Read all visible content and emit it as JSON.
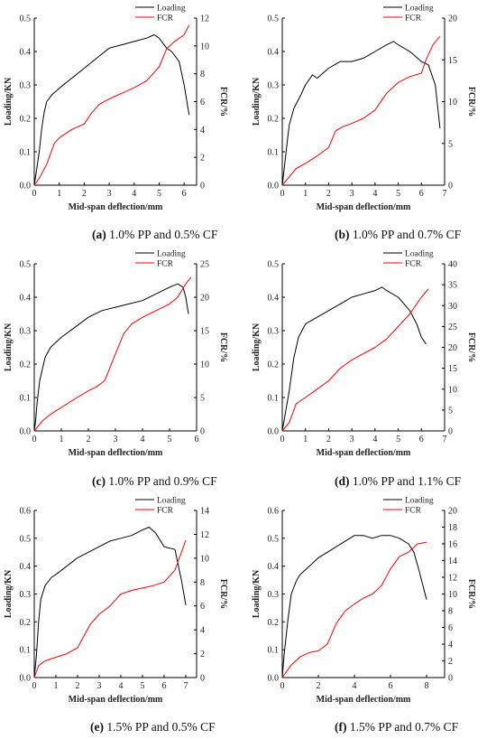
{
  "colors": {
    "loading": "#000000",
    "fcr": "#ff0000"
  },
  "chart_data": [
    {
      "type": "line",
      "panel_letter": "(a)",
      "caption": "1.0% PP and 0.5% CF",
      "xlabel": "Mid-span deflection/mm",
      "ylabel": "Loading/KN",
      "y2label": "FCR/%",
      "xlim": [
        0,
        6.5
      ],
      "ylim": [
        0,
        0.5
      ],
      "y2lim": [
        0,
        12
      ],
      "xticks": [
        "0",
        "1",
        "2",
        "3",
        "4",
        "5",
        "6"
      ],
      "yticks": [
        "0.0",
        "0.1",
        "0.2",
        "0.3",
        "0.4",
        "0.5"
      ],
      "y2ticks": [
        "0",
        "2",
        "4",
        "6",
        "8",
        "10",
        "12"
      ],
      "legend": [
        "Loading",
        "FCR"
      ],
      "legend_position": "top-right",
      "series": [
        {
          "name": "Loading",
          "axis": "left",
          "x": [
            0,
            0.1,
            0.2,
            0.3,
            0.4,
            0.5,
            0.7,
            1.0,
            1.5,
            2.0,
            2.5,
            3.0,
            3.5,
            4.0,
            4.5,
            4.8,
            5.0,
            5.3,
            5.5,
            5.8,
            6.0,
            6.2
          ],
          "y": [
            0,
            0.05,
            0.1,
            0.17,
            0.22,
            0.25,
            0.27,
            0.29,
            0.32,
            0.35,
            0.38,
            0.41,
            0.42,
            0.43,
            0.44,
            0.45,
            0.44,
            0.41,
            0.4,
            0.37,
            0.3,
            0.21
          ]
        },
        {
          "name": "FCR",
          "axis": "right",
          "x": [
            0,
            0.2,
            0.5,
            0.8,
            1.0,
            1.5,
            2.0,
            2.3,
            2.6,
            3.0,
            3.5,
            4.0,
            4.5,
            5.0,
            5.3,
            5.6,
            6.0,
            6.2
          ],
          "y": [
            0,
            0.5,
            1.5,
            3.0,
            3.4,
            4.0,
            4.4,
            5.2,
            5.8,
            6.2,
            6.6,
            7.0,
            7.5,
            8.5,
            9.8,
            10.3,
            10.8,
            11.5
          ]
        }
      ]
    },
    {
      "type": "line",
      "panel_letter": "(b)",
      "caption": "1.0% PP and 0.7% CF",
      "xlabel": "Mid-span deflection/mm",
      "ylabel": "Loading/KN",
      "y2label": "FCR/%",
      "xlim": [
        0,
        7
      ],
      "ylim": [
        0,
        0.5
      ],
      "y2lim": [
        0,
        20
      ],
      "xticks": [
        "0",
        "1",
        "2",
        "3",
        "4",
        "5",
        "6",
        "7"
      ],
      "yticks": [
        "0.0",
        "0.1",
        "0.2",
        "0.3",
        "0.4",
        "0.5"
      ],
      "y2ticks": [
        "0",
        "5",
        "10",
        "15",
        "20"
      ],
      "legend": [
        "Loading",
        "FCR"
      ],
      "legend_position": "top-right",
      "series": [
        {
          "name": "Loading",
          "axis": "left",
          "x": [
            0,
            0.1,
            0.2,
            0.3,
            0.5,
            0.8,
            1.0,
            1.3,
            1.5,
            2.0,
            2.5,
            3.0,
            3.5,
            4.0,
            4.5,
            4.8,
            5.0,
            5.5,
            6.0,
            6.3,
            6.6,
            6.8
          ],
          "y": [
            0,
            0.06,
            0.12,
            0.18,
            0.23,
            0.27,
            0.3,
            0.33,
            0.32,
            0.35,
            0.37,
            0.37,
            0.38,
            0.4,
            0.42,
            0.43,
            0.42,
            0.4,
            0.37,
            0.36,
            0.3,
            0.17
          ]
        },
        {
          "name": "FCR",
          "axis": "right",
          "x": [
            0,
            0.3,
            0.6,
            1.0,
            1.5,
            2.0,
            2.3,
            2.6,
            3.0,
            3.5,
            4.0,
            4.5,
            5.0,
            5.5,
            6.0,
            6.2,
            6.5,
            6.8
          ],
          "y": [
            0,
            1.0,
            2.0,
            2.6,
            3.5,
            4.5,
            6.5,
            7.0,
            7.4,
            8.0,
            9.0,
            11.0,
            12.3,
            13.0,
            13.4,
            15.0,
            16.8,
            17.8
          ]
        }
      ]
    },
    {
      "type": "line",
      "panel_letter": "(c)",
      "caption": "1.0% PP and 0.9% CF",
      "xlabel": "Mid-span deflection/mm",
      "ylabel": "Loading/KN",
      "y2label": "FCR/%",
      "xlim": [
        0,
        6
      ],
      "ylim": [
        0,
        0.5
      ],
      "y2lim": [
        0,
        25
      ],
      "xticks": [
        "0",
        "1",
        "2",
        "3",
        "4",
        "5",
        "6"
      ],
      "yticks": [
        "0.0",
        "0.1",
        "0.2",
        "0.3",
        "0.4",
        "0.5"
      ],
      "y2ticks": [
        "0",
        "5",
        "10",
        "15",
        "20",
        "25"
      ],
      "legend": [
        "Loading",
        "FCR"
      ],
      "legend_position": "top-right",
      "series": [
        {
          "name": "Loading",
          "axis": "left",
          "x": [
            0,
            0.05,
            0.1,
            0.2,
            0.4,
            0.6,
            1.0,
            1.5,
            2.0,
            2.5,
            3.0,
            3.5,
            4.0,
            4.5,
            5.0,
            5.3,
            5.5,
            5.6,
            5.7
          ],
          "y": [
            0,
            0.03,
            0.08,
            0.15,
            0.22,
            0.25,
            0.28,
            0.31,
            0.34,
            0.36,
            0.37,
            0.38,
            0.39,
            0.41,
            0.43,
            0.44,
            0.43,
            0.4,
            0.35
          ]
        },
        {
          "name": "FCR",
          "axis": "right",
          "x": [
            0,
            0.3,
            0.6,
            1.0,
            1.5,
            2.0,
            2.3,
            2.6,
            2.8,
            3.0,
            3.3,
            3.6,
            4.0,
            4.5,
            5.0,
            5.3,
            5.6,
            5.8
          ],
          "y": [
            0,
            1.5,
            2.5,
            3.5,
            4.8,
            6.0,
            6.6,
            7.5,
            9.5,
            11.5,
            14.5,
            16.0,
            17.0,
            18.0,
            19.0,
            20.0,
            22.0,
            23.0
          ]
        }
      ]
    },
    {
      "type": "line",
      "panel_letter": "(d)",
      "caption": "1.0% PP and 1.1% CF",
      "xlabel": "Mid-span deflection/mm",
      "ylabel": "Loading/KN",
      "y2label": "FCR/%",
      "xlim": [
        0,
        7
      ],
      "ylim": [
        0,
        0.5
      ],
      "y2lim": [
        0,
        40
      ],
      "xticks": [
        "0",
        "1",
        "2",
        "3",
        "4",
        "5",
        "6",
        "7"
      ],
      "yticks": [
        "0.0",
        "0.1",
        "0.2",
        "0.3",
        "0.4",
        "0.5"
      ],
      "y2ticks": [
        "0",
        "5",
        "10",
        "15",
        "20",
        "25",
        "30",
        "35",
        "40"
      ],
      "legend": [
        "Loading",
        "FCR"
      ],
      "legend_position": "top-right",
      "series": [
        {
          "name": "Loading",
          "axis": "left",
          "x": [
            0,
            0.1,
            0.3,
            0.5,
            0.7,
            1.0,
            1.5,
            2.0,
            2.5,
            3.0,
            3.5,
            4.0,
            4.3,
            4.5,
            5.0,
            5.5,
            5.8,
            6.0,
            6.2
          ],
          "y": [
            0,
            0.04,
            0.12,
            0.22,
            0.28,
            0.32,
            0.34,
            0.36,
            0.38,
            0.4,
            0.41,
            0.42,
            0.43,
            0.42,
            0.4,
            0.36,
            0.32,
            0.28,
            0.26
          ]
        },
        {
          "name": "FCR",
          "axis": "right",
          "x": [
            0,
            0.3,
            0.6,
            1.0,
            1.5,
            2.0,
            2.5,
            3.0,
            3.5,
            4.0,
            4.5,
            5.0,
            5.5,
            6.0,
            6.3
          ],
          "y": [
            0,
            2.0,
            6.5,
            8.0,
            10.0,
            12.0,
            15.0,
            17.0,
            18.5,
            20.0,
            22.0,
            25.0,
            28.0,
            32.0,
            34.0
          ]
        }
      ]
    },
    {
      "type": "line",
      "panel_letter": "(e)",
      "caption": "1.5% PP and 0.5% CF",
      "xlabel": "Mid-span deflection/mm",
      "ylabel": "Loading/KN",
      "y2label": "FCR/%",
      "xlim": [
        0,
        7.5
      ],
      "ylim": [
        0,
        0.6
      ],
      "y2lim": [
        0,
        14
      ],
      "xticks": [
        "0",
        "1",
        "2",
        "3",
        "4",
        "5",
        "6",
        "7"
      ],
      "yticks": [
        "0.0",
        "0.1",
        "0.2",
        "0.3",
        "0.4",
        "0.5",
        "0.6"
      ],
      "y2ticks": [
        "0",
        "2",
        "4",
        "6",
        "8",
        "10",
        "12",
        "14"
      ],
      "legend": [
        "Loading",
        "FCR"
      ],
      "legend_position": "top-right",
      "series": [
        {
          "name": "Loading",
          "axis": "left",
          "x": [
            0,
            0.1,
            0.2,
            0.3,
            0.5,
            0.8,
            1.0,
            1.5,
            2.0,
            2.5,
            3.0,
            3.5,
            4.0,
            4.5,
            5.0,
            5.3,
            5.6,
            6.0,
            6.5,
            6.8,
            7.0
          ],
          "y": [
            0,
            0.08,
            0.2,
            0.28,
            0.33,
            0.36,
            0.37,
            0.4,
            0.43,
            0.45,
            0.47,
            0.49,
            0.5,
            0.51,
            0.53,
            0.54,
            0.52,
            0.47,
            0.46,
            0.35,
            0.26
          ]
        },
        {
          "name": "FCR",
          "axis": "right",
          "x": [
            0,
            0.2,
            0.5,
            1.0,
            1.5,
            2.0,
            2.3,
            2.6,
            3.0,
            3.5,
            4.0,
            4.5,
            5.0,
            5.5,
            6.0,
            6.5,
            6.8,
            7.0
          ],
          "y": [
            0,
            1.0,
            1.4,
            1.7,
            2.0,
            2.5,
            3.5,
            4.5,
            5.3,
            6.0,
            7.0,
            7.3,
            7.5,
            7.7,
            8.0,
            9.0,
            10.5,
            11.5
          ]
        }
      ]
    },
    {
      "type": "line",
      "panel_letter": "(f)",
      "caption": "1.5% PP and 0.7% CF",
      "xlabel": "Mid-span deflection/mm",
      "ylabel": "Loading/KN",
      "y2label": "FCR/%",
      "xlim": [
        0,
        9
      ],
      "ylim": [
        0,
        0.6
      ],
      "y2lim": [
        0,
        20
      ],
      "xticks": [
        "0",
        "2",
        "4",
        "6",
        "8"
      ],
      "yticks": [
        "0.0",
        "0.1",
        "0.2",
        "0.3",
        "0.4",
        "0.5",
        "0.6"
      ],
      "y2ticks": [
        "0",
        "2",
        "4",
        "6",
        "8",
        "10",
        "12",
        "14",
        "16",
        "18",
        "20"
      ],
      "legend": [
        "Loading",
        "FCR"
      ],
      "legend_position": "top-right",
      "series": [
        {
          "name": "Loading",
          "axis": "left",
          "x": [
            0,
            0.1,
            0.3,
            0.5,
            0.8,
            1.0,
            1.5,
            2.0,
            2.5,
            3.0,
            3.5,
            4.0,
            4.5,
            5.0,
            5.5,
            6.0,
            6.5,
            7.0,
            7.3,
            7.6,
            8.0
          ],
          "y": [
            0,
            0.08,
            0.2,
            0.3,
            0.35,
            0.37,
            0.4,
            0.43,
            0.45,
            0.47,
            0.49,
            0.51,
            0.51,
            0.5,
            0.51,
            0.51,
            0.5,
            0.48,
            0.45,
            0.38,
            0.28
          ]
        },
        {
          "name": "FCR",
          "axis": "right",
          "x": [
            0,
            0.5,
            1.0,
            1.5,
            2.0,
            2.5,
            3.0,
            3.5,
            4.0,
            4.5,
            5.0,
            5.5,
            6.0,
            6.5,
            7.0,
            7.5,
            8.0
          ],
          "y": [
            0,
            1.5,
            2.5,
            3.0,
            3.2,
            4.0,
            6.5,
            8.0,
            8.8,
            9.5,
            10.0,
            11.0,
            13.0,
            14.5,
            15.0,
            16.0,
            16.2
          ]
        }
      ]
    }
  ]
}
